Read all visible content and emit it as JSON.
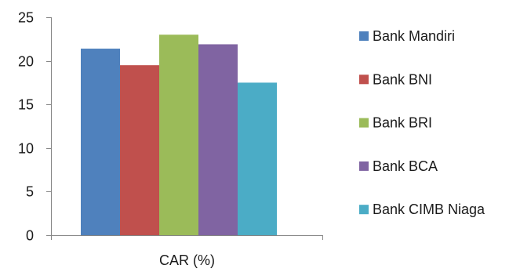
{
  "chart_data": {
    "type": "bar",
    "categories": [
      "CAR (%)"
    ],
    "series": [
      {
        "name": "Bank Mandiri",
        "values": [
          21.4
        ],
        "color": "#4f81bd"
      },
      {
        "name": "Bank BNI",
        "values": [
          19.5
        ],
        "color": "#c0504d"
      },
      {
        "name": "Bank BRI",
        "values": [
          23.0
        ],
        "color": "#9bbb59"
      },
      {
        "name": "Bank BCA",
        "values": [
          21.9
        ],
        "color": "#8064a2"
      },
      {
        "name": "Bank CIMB Niaga",
        "values": [
          17.5
        ],
        "color": "#4bacc6"
      }
    ],
    "yticks": [
      "0",
      "5",
      "10",
      "15",
      "20",
      "25"
    ],
    "ylim": [
      0,
      25
    ],
    "grid": false,
    "legend": "right"
  }
}
